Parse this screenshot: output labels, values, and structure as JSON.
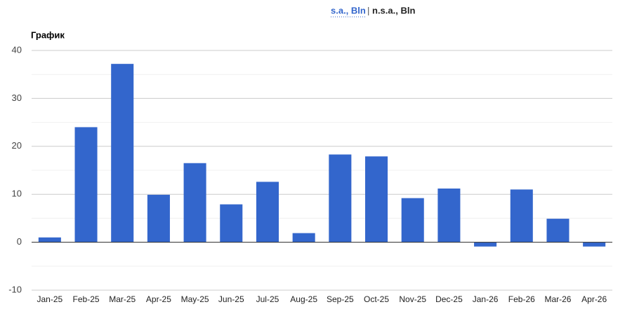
{
  "chart_data": {
    "type": "bar",
    "tabs": [
      "s.a., Bln",
      "n.s.a., Bln"
    ],
    "separator": "|",
    "title": "График",
    "categories": [
      "Jan-25",
      "Feb-25",
      "Mar-25",
      "Apr-25",
      "May-25",
      "Jun-25",
      "Jul-25",
      "Aug-25",
      "Sep-25",
      "Oct-25",
      "Nov-25",
      "Dec-25",
      "Jan-26",
      "Feb-26",
      "Mar-26",
      "Apr-26"
    ],
    "values": [
      1,
      24,
      37.2,
      9.9,
      16.5,
      7.9,
      12.6,
      1.9,
      18.3,
      17.9,
      9.2,
      11.2,
      -0.9,
      11,
      4.9,
      -0.9
    ],
    "color": "#3366cc",
    "ylim": [
      -10,
      40
    ],
    "yticks": [
      -10,
      0,
      10,
      20,
      30,
      40
    ],
    "minor_yticks": [
      -5,
      5,
      15,
      25,
      35
    ],
    "grid": true
  }
}
